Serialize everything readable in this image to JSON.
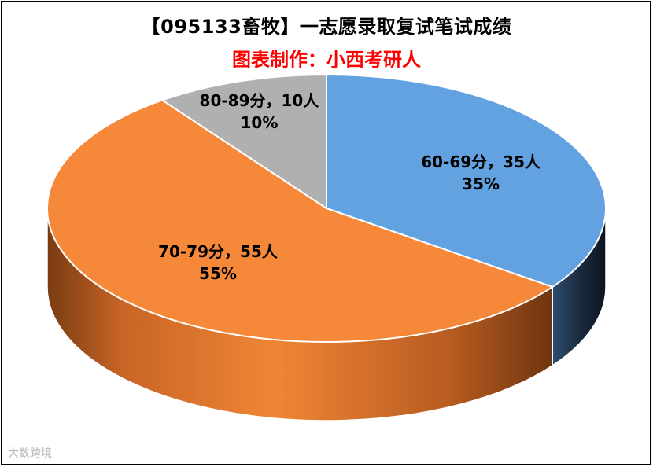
{
  "chart_data": {
    "type": "pie",
    "title": "【095133畜牧】一志愿录取复试笔试成绩",
    "subtitle": "图表制作：小西考研人",
    "slices": [
      {
        "label": "60-69分",
        "count": 35,
        "percent": 35,
        "color": "#63a2e0",
        "label_text": "60-69分，35人",
        "pct_text": "35%"
      },
      {
        "label": "70-79分",
        "count": 55,
        "percent": 55,
        "color": "#f6883a",
        "label_text": "70-79分，55人",
        "pct_text": "55%"
      },
      {
        "label": "80-89分",
        "count": 10,
        "percent": 10,
        "color": "#b0b0b0",
        "label_text": "80-89分，10人",
        "pct_text": "10%"
      }
    ],
    "legend": "none"
  },
  "watermark": "大数跨境"
}
